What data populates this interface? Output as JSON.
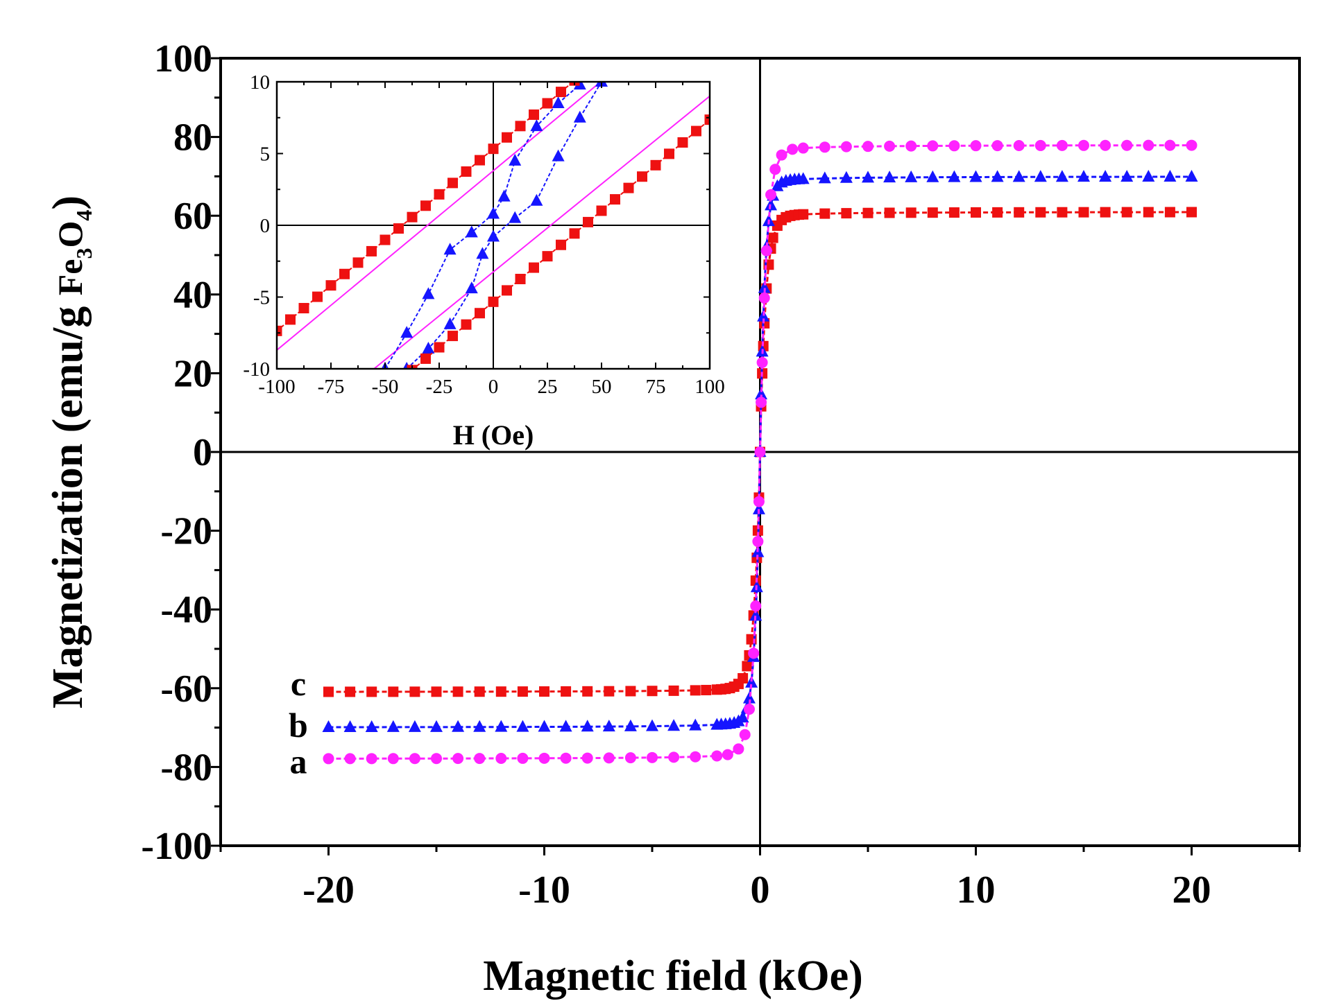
{
  "chart_data": [
    {
      "id": "main",
      "type": "line",
      "xlabel": "Magnetic field (kOe)",
      "ylabel": {
        "main": "Magnetization (emu/g ",
        "fe": "Fe",
        "sub3": "3",
        "o": "O",
        "sub4": "4",
        "close": ")"
      },
      "xlim": [
        -25,
        25
      ],
      "ylim": [
        -100,
        100
      ],
      "xticks": [
        -20,
        -10,
        0,
        10,
        20
      ],
      "xtick_labels": [
        "-20",
        "-10",
        "0",
        "10",
        "20"
      ],
      "yticks": [
        -100,
        -80,
        -60,
        -40,
        -20,
        0,
        20,
        40,
        60,
        80,
        100
      ],
      "ytick_labels": [
        "-100",
        "-80",
        "-60",
        "-40",
        "-20",
        "0",
        "20",
        "40",
        "60",
        "80",
        "100"
      ],
      "series": [
        {
          "name": "a",
          "color": "#ff22ff",
          "marker": "circle",
          "ms": 50,
          "coercivity": 0.0008,
          "scale": 0.38,
          "exp": 0.88,
          "x": [
            -20,
            -19,
            -18,
            -17,
            -16,
            -15,
            -14,
            -13,
            -12,
            -11,
            -10,
            -9,
            -8,
            -7,
            -6,
            -5,
            -4,
            -3,
            -2,
            -1.5,
            -1,
            -0.7,
            -0.5,
            -0.3,
            -0.2,
            -0.1,
            -0.05,
            0,
            0.05,
            0.1,
            0.2,
            0.3,
            0.5,
            0.7,
            1,
            1.5,
            2,
            3,
            4,
            5,
            6,
            7,
            8,
            9,
            10,
            11,
            12,
            13,
            14,
            15,
            16,
            17,
            18,
            19,
            20
          ]
        },
        {
          "name": "b",
          "color": "#1515ff",
          "marker": "triangle",
          "ms": 34,
          "coercivity": 0.003,
          "scale": 0.3,
          "exp": 0.85,
          "x": [
            -20,
            -19,
            -18,
            -17,
            -16,
            -15,
            -14,
            -13,
            -12,
            -11,
            -10,
            -9,
            -8,
            -7,
            -6,
            -5,
            -4,
            -3,
            -2,
            -1.8,
            -1.6,
            -1.4,
            -1.2,
            -1,
            -0.8,
            -0.6,
            -0.5,
            -0.4,
            -0.3,
            -0.2,
            -0.15,
            -0.1,
            -0.05,
            0,
            0.05,
            0.1,
            0.15,
            0.2,
            0.3,
            0.4,
            0.5,
            0.6,
            0.8,
            1,
            1.2,
            1.4,
            1.6,
            1.8,
            2,
            3,
            4,
            5,
            6,
            7,
            8,
            9,
            10,
            11,
            12,
            13,
            14,
            15,
            16,
            17,
            18,
            19,
            20
          ]
        },
        {
          "name": "c",
          "color": "#ee1111",
          "marker": "square",
          "ms": 26,
          "coercivity": 0.0043,
          "scale": 0.36,
          "exp": 0.82,
          "x": [
            -20,
            -19,
            -18,
            -17,
            -16,
            -15,
            -14,
            -13,
            -12,
            -11,
            -10,
            -9,
            -8,
            -7,
            -6,
            -5,
            -4,
            -3,
            -2.5,
            -2,
            -1.8,
            -1.6,
            -1.4,
            -1.2,
            -1,
            -0.8,
            -0.6,
            -0.5,
            -0.4,
            -0.3,
            -0.2,
            -0.15,
            -0.1,
            -0.05,
            0,
            0.05,
            0.1,
            0.15,
            0.2,
            0.3,
            0.4,
            0.5,
            0.6,
            0.8,
            1,
            1.2,
            1.4,
            1.6,
            1.8,
            2,
            3,
            4,
            5,
            6,
            7,
            8,
            9,
            10,
            11,
            12,
            13,
            14,
            15,
            16,
            17,
            18,
            19,
            20
          ]
        }
      ],
      "saturation": {
        "a": 78,
        "b": 70,
        "c": 61
      },
      "labels": [
        {
          "text": "c",
          "x": -21.4,
          "y": -59
        },
        {
          "text": "b",
          "x": -21.4,
          "y": -69.5
        },
        {
          "text": "a",
          "x": -21.4,
          "y": -78.8
        }
      ]
    },
    {
      "id": "inset",
      "type": "line",
      "xlabel": "H (Oe)",
      "ylabel": "",
      "xlim": [
        -100,
        100
      ],
      "ylim": [
        -10,
        10
      ],
      "xticks": [
        -100,
        -75,
        -50,
        -25,
        0,
        25,
        50,
        75,
        100
      ],
      "xtick_labels": [
        "-100",
        "-75",
        "-50",
        "-25",
        "0",
        "25",
        "50",
        "75",
        "100"
      ],
      "yticks": [
        -10,
        -5,
        0,
        5,
        10
      ],
      "ytick_labels": [
        "-10",
        "-5",
        "0",
        "5",
        "10"
      ],
      "series": [
        {
          "name": "a-upper",
          "color": "#ff22ff",
          "marker": "none",
          "line": [
            [
              -100,
              -8.7
            ],
            [
              100,
              16.3
            ]
          ]
        },
        {
          "name": "a-lower",
          "color": "#ff22ff",
          "marker": "none",
          "line": [
            [
              -100,
              -15.5
            ],
            [
              100,
              9.0
            ]
          ]
        },
        {
          "name": "b-upper",
          "color": "#1515ff",
          "marker": "triangle",
          "points": [
            [
              -50,
              -10
            ],
            [
              -40,
              -7.5
            ],
            [
              -30,
              -4.8
            ],
            [
              -20,
              -1.7
            ],
            [
              -10,
              -0.5
            ],
            [
              0,
              0.8
            ],
            [
              5,
              2.0
            ],
            [
              10,
              4.5
            ],
            [
              20,
              6.9
            ],
            [
              30,
              8.5
            ],
            [
              40,
              9.8
            ]
          ]
        },
        {
          "name": "b-lower",
          "color": "#1515ff",
          "marker": "triangle",
          "points": [
            [
              -40,
              -10
            ],
            [
              -30,
              -8.6
            ],
            [
              -20,
              -6.9
            ],
            [
              -10,
              -4.4
            ],
            [
              -5,
              -2.0
            ],
            [
              0,
              -0.8
            ],
            [
              10,
              0.5
            ],
            [
              20,
              1.7
            ],
            [
              30,
              4.8
            ],
            [
              40,
              7.5
            ],
            [
              50,
              10
            ]
          ]
        },
        {
          "name": "c-upper",
          "color": "#ee1111",
          "marker": "square",
          "x0": 42,
          "slope": 0.1269
        },
        {
          "name": "c-lower",
          "color": "#ee1111",
          "marker": "square",
          "x0": -42,
          "slope": 0.1269
        }
      ]
    }
  ]
}
